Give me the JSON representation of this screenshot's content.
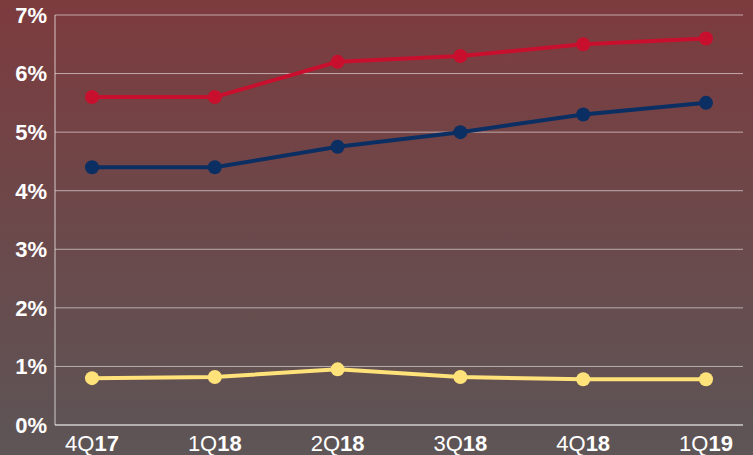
{
  "chart_data": {
    "type": "line",
    "categories": [
      "4Q17",
      "1Q18",
      "2Q18",
      "3Q18",
      "4Q18",
      "1Q19"
    ],
    "series": [
      {
        "color": "#c8102e",
        "values": [
          5.6,
          5.6,
          6.2,
          6.3,
          6.5,
          6.6
        ]
      },
      {
        "color": "#0b2f63",
        "values": [
          4.4,
          4.4,
          4.75,
          5.0,
          5.3,
          5.5
        ]
      },
      {
        "color": "#ffe27a",
        "values": [
          0.8,
          0.82,
          0.95,
          0.82,
          0.78,
          0.78
        ]
      }
    ],
    "ylim": [
      0,
      7
    ],
    "yticks": [
      {
        "value": 0,
        "label": "0%"
      },
      {
        "value": 1,
        "label": "1%"
      },
      {
        "value": 2,
        "label": "2%"
      },
      {
        "value": 3,
        "label": "3%"
      },
      {
        "value": 4,
        "label": "4%"
      },
      {
        "value": 5,
        "label": "5%"
      },
      {
        "value": 6,
        "label": "6%"
      },
      {
        "value": 7,
        "label": "7%"
      }
    ],
    "grid": true,
    "marker": "circle"
  }
}
